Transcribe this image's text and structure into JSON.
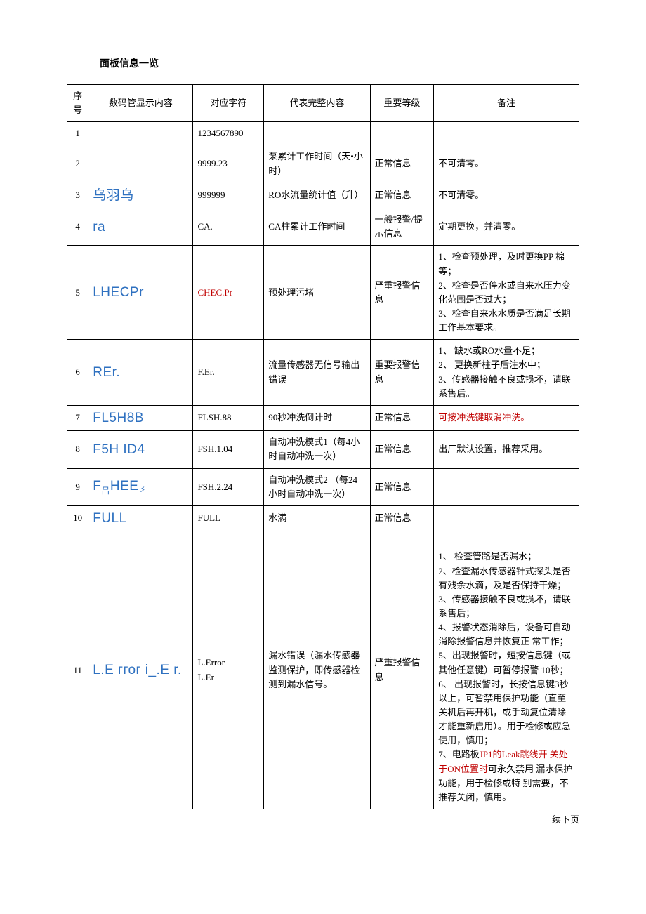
{
  "title": "面板信息一览",
  "footer": "续下页",
  "headers": {
    "idx": "序号",
    "display": "数码管显示内容",
    "char": "对应字符",
    "desc": "代表完整内容",
    "level": "重要等级",
    "note": "备注"
  },
  "rows": {
    "r1": {
      "idx": "1",
      "display": "",
      "char": "1234567890",
      "desc": "",
      "level": "",
      "note": ""
    },
    "r2": {
      "idx": "2",
      "display": "",
      "char": "9999.23",
      "desc": "泵累计工作时间（天•小时）",
      "level": "正常信息",
      "note": "不可清零。"
    },
    "r3": {
      "idx": "3",
      "display": "乌羽乌",
      "char": "999999",
      "desc": "RO水流量统计值（升）",
      "level": "正常信息",
      "note": "不可清零。"
    },
    "r4": {
      "idx": "4",
      "display": "ra",
      "char": "CA.",
      "desc": "CA柱累计工作时间",
      "level": "一般报警/提示信息",
      "note": "定期更换，并清零。"
    },
    "r5": {
      "idx": "5",
      "display": "LHECPr",
      "char": "CHEC.Pr",
      "desc": "预处理污堵",
      "level": "严重报警信息",
      "note": "1、检查预处理，及时更换PP 棉等；\n2、检查是否停水或自来水压力变化范围是否过大；\n3、检查自来水水质是否满足长期工作基本要求。"
    },
    "r6": {
      "idx": "6",
      "display": "REr.",
      "char": "F.Er.",
      "desc": "流量传感器无信号输出错误",
      "level": "重要报警信息",
      "note": "1、 缺水或RO水量不足；\n2、 更换新柱子后注水中；\n3、传感器接触不良或损坏，请联系售后。"
    },
    "r7": {
      "idx": "7",
      "display": "FL5H8B",
      "char": "FLSH.88",
      "desc": "90秒冲洗倒计时",
      "level": "正常信息",
      "note_red": "可按冲洗键取消冲洗。"
    },
    "r8": {
      "idx": "8",
      "display": "F5H ID4",
      "char": "FSH.1.04",
      "desc": "自动冲洗模式1（每4小时自动冲洗一次）",
      "level": "正常信息",
      "note": "出厂默认设置，推荐采用。"
    },
    "r9": {
      "idx": "9",
      "display_html": "F<span class=\"sub\">吕</span>HEE<span class=\"sub\">彳</span>",
      "char": "FSH.2.24",
      "desc": "自动冲洗模式2 （每24小时自动冲洗一次）",
      "level": "正常信息",
      "note": ""
    },
    "r10": {
      "idx": "10",
      "display": "FULL",
      "char": "FULL",
      "desc": "水满",
      "level": "正常信息",
      "note": ""
    },
    "r11": {
      "idx": "11",
      "display": "L.E ггог i_.E r.",
      "char": "L.Error\nL.Er",
      "desc": "漏水错误（漏水传感器监测保护，即传感器检测到漏水信号。",
      "level": "严重报警信息",
      "note_pre": "1、 检查管路是否漏水；\n2、检查漏水传感器针式探头是否有残余水滴，及是否保持干燥；\n3、传感器接触不良或损坏，请联系售后；\n4、报警状态消除后，设备可自动消除报警信息并恢复正 常工作；\n5、出现报警时，短按信息键（或其他任意键）可暂停报警 10秒；\n6、 出现报警时，长按信息键3秒以上，可暂禁用保护功能（直至关机后再开机，或手动复位清除才能重新启用）。用于检修或应急使用，慎用；\n7、电路板",
      "note_red": "JP1的Leak跳线开 关处于ON位置时",
      "note_post": "可永久禁用 漏水保护功能，用于检修或特 别需要，不推荐关闭，慎用。"
    }
  }
}
